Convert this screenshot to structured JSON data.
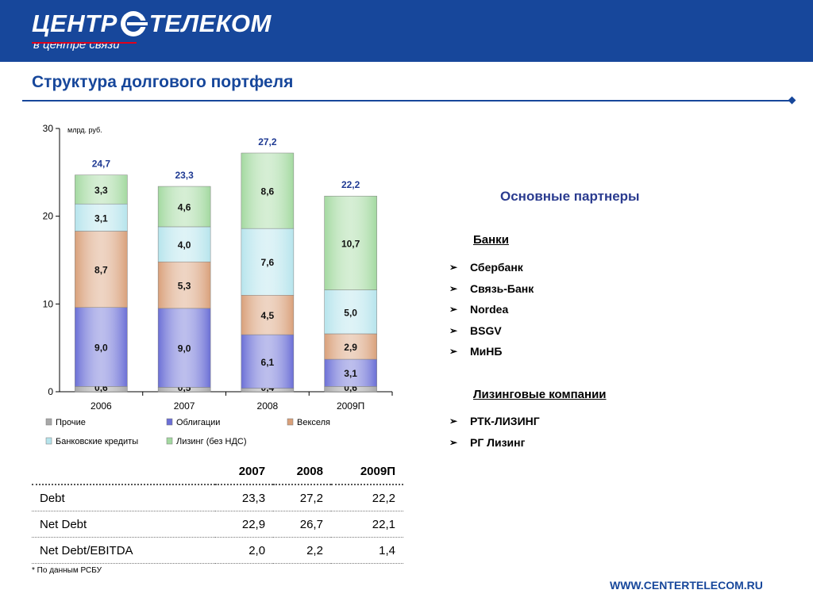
{
  "brand": {
    "logo_left": "ЦЕНТР",
    "logo_right": "ТЕЛЕКОМ",
    "tagline": "в центре связи",
    "website": "WWW.CENTERTELECOM.RU"
  },
  "page": {
    "title": "Структура долгового портфеля"
  },
  "chart_data": {
    "type": "bar",
    "stacked": true,
    "categories": [
      "2006",
      "2007",
      "2008",
      "2009П"
    ],
    "unit_label": "млрд. руб.",
    "ylim": [
      0,
      30
    ],
    "yticks": [
      "0",
      "10",
      "20",
      "30"
    ],
    "totals": [
      "24,7",
      "23,3",
      "27,2",
      "22,2"
    ],
    "series": [
      {
        "name": "Прочие",
        "values": [
          0.6,
          0.5,
          0.4,
          0.6
        ],
        "labels": [
          "0,6",
          "0,5",
          "0,4",
          "0,6"
        ],
        "color": "#a8a8a8"
      },
      {
        "name": "Облигации",
        "values": [
          9.0,
          9.0,
          6.1,
          3.1
        ],
        "labels": [
          "9,0",
          "9,0",
          "6,1",
          "3,1"
        ],
        "color": "#6b6fd6"
      },
      {
        "name": "Векселя",
        "values": [
          8.7,
          5.3,
          4.5,
          2.9
        ],
        "labels": [
          "8,7",
          "5,3",
          "4,5",
          "2,9"
        ],
        "color": "#d9a07a"
      },
      {
        "name": "Банковские кредиты",
        "values": [
          3.1,
          4.0,
          7.6,
          5.0
        ],
        "labels": [
          "3,1",
          "4,0",
          "7,6",
          "5,0"
        ],
        "color": "#b6e4ec"
      },
      {
        "name": "Лизинг (без НДС)",
        "values": [
          3.3,
          4.6,
          8.6,
          10.7
        ],
        "labels": [
          "3,3",
          "4,6",
          "8,6",
          "10,7"
        ],
        "color": "#a3d9a0"
      }
    ],
    "legend_placement": "bottom",
    "grid": false
  },
  "partners": {
    "title": "Основные партнеры",
    "banks_heading": "Банки",
    "banks": [
      "Сбербанк",
      "Связь-Банк",
      "Nordea",
      "BSGV",
      "МиНБ"
    ],
    "leasing_heading": "Лизинговые компании",
    "leasing": [
      "РТК-ЛИЗИНГ",
      "РГ Лизинг"
    ]
  },
  "table": {
    "headers": [
      "",
      "2007",
      "2008",
      "2009П"
    ],
    "rows": [
      [
        "Debt",
        "23,3",
        "27,2",
        "22,2"
      ],
      [
        "Net Debt",
        "22,9",
        "26,7",
        "22,1"
      ],
      [
        "Net Debt/EBITDA",
        "2,0",
        "2,2",
        "1,4"
      ]
    ]
  },
  "footnote": "* По данным РСБУ"
}
